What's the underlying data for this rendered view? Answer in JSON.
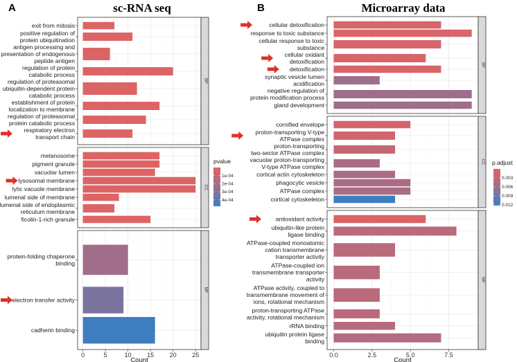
{
  "chart_data": [
    {
      "type": "bar",
      "orientation": "horizontal",
      "panel_letter": "A",
      "title": "sc-RNA seq",
      "xlabel": "Count",
      "xticks": [
        "0",
        "5",
        "10",
        "15",
        "20",
        "25"
      ],
      "xtick_values": [
        0,
        5,
        10,
        15,
        20,
        25
      ],
      "xlim": [
        -1.17,
        26.2
      ],
      "grid": true,
      "color_scale": {
        "name": "pvalue",
        "low_color": "#E06363",
        "mid_color": "#9B6F8E",
        "high_color": "#3A7FC2",
        "range": [
          0,
          0.00048
        ],
        "ticks": [
          "1e-04",
          "2e-04",
          "3e-04",
          "4e-04"
        ],
        "tick_values": [
          0.0001,
          0.0002,
          0.0003,
          0.0004
        ]
      },
      "legend_placement": "right",
      "facets": [
        {
          "strip": "BP",
          "bars": [
            {
              "label": "exit from mitosis",
              "count": 7,
              "color_value": 1e-05
            },
            {
              "label": "positive regulation of\nprotein ubiquitination",
              "count": 11,
              "color_value": 1e-05
            },
            {
              "label": "antigen processing and\npresentation of endogenous\npeptide antigen",
              "count": 6,
              "color_value": 1e-05
            },
            {
              "label": "regulation of protein\ncatabolic process",
              "count": 20,
              "color_value": 1e-05
            },
            {
              "label": "regulation of proteasomal\nubiquitin-dependent protein\ncatabolic process",
              "count": 12,
              "color_value": 1e-05
            },
            {
              "label": "establishment of protein\nlocalization to membrane",
              "count": 17,
              "color_value": 1e-05
            },
            {
              "label": "regulation of proteasomal\nprotein catabolic process",
              "count": 14,
              "color_value": 1e-05
            },
            {
              "label": "respiratory electron\ntransport chain",
              "count": 11,
              "color_value": 1e-05,
              "highlighted": true
            }
          ]
        },
        {
          "strip": "CC",
          "bars": [
            {
              "label": "melanosome",
              "count": 17,
              "color_value": 1e-05
            },
            {
              "label": "pigment granule",
              "count": 17,
              "color_value": 1e-05
            },
            {
              "label": "vacuolar lumen",
              "count": 16,
              "color_value": 1e-05
            },
            {
              "label": "lysosomal membrane",
              "count": 25,
              "color_value": 1e-05,
              "highlighted": true
            },
            {
              "label": "lytic vacuole membrane",
              "count": 25,
              "color_value": 1e-05
            },
            {
              "label": "lumenal side of membrane",
              "count": 8,
              "color_value": 1e-05
            },
            {
              "label": "lumenal side of endoplasmic\nreticulum membrane",
              "count": 7,
              "color_value": 1e-05
            },
            {
              "label": "ficolin-1-rich granule",
              "count": 15,
              "color_value": 1e-05
            }
          ]
        },
        {
          "strip": "MF",
          "bars": [
            {
              "label": "protein-folding chaperone\nbinding",
              "count": 10,
              "color_value": 0.00022
            },
            {
              "label": "electron transfer activity",
              "count": 9,
              "color_value": 0.00032,
              "highlighted": true
            },
            {
              "label": "cadherin binding",
              "count": 16,
              "color_value": 0.00047
            }
          ]
        }
      ]
    },
    {
      "type": "bar",
      "orientation": "horizontal",
      "panel_letter": "B",
      "title": "Microarray data",
      "xlabel": "Count",
      "xticks": [
        "0.0",
        "2.5",
        "5.0",
        "7.5"
      ],
      "xtick_values": [
        0,
        2.5,
        5,
        7.5
      ],
      "xlim": [
        -0.43,
        9.42
      ],
      "grid": true,
      "color_scale": {
        "name": "p.adjust",
        "low_color": "#E06363",
        "mid_color": "#9B6F8E",
        "high_color": "#3A7FC2",
        "range": [
          0,
          0.0123
        ],
        "ticks": [
          "0.003",
          "0.006",
          "0.009",
          "0.012"
        ],
        "tick_values": [
          0.003,
          0.006,
          0.009,
          0.012
        ]
      },
      "legend_placement": "right",
      "facets": [
        {
          "strip": "BP",
          "bars": [
            {
              "label": "cellular detoxification",
              "count": 7,
              "color_value": 0.0008,
              "highlighted": true
            },
            {
              "label": "response to toxic substance",
              "count": 9,
              "color_value": 0.0008
            },
            {
              "label": "cellular response to toxic\nsubstance",
              "count": 7,
              "color_value": 0.0008
            },
            {
              "label": "cellular oxidant\ndetoxification",
              "count": 6,
              "color_value": 0.0008,
              "highlighted": true
            },
            {
              "label": "detoxification",
              "count": 7,
              "color_value": 0.0008,
              "highlighted": true
            },
            {
              "label": "synaptic vesicle lumen\nacidification",
              "count": 3,
              "color_value": 0.0058
            },
            {
              "label": "negative regulation of\nprotein modification process",
              "count": 9,
              "color_value": 0.0058
            },
            {
              "label": "gland development",
              "count": 9,
              "color_value": 0.0058
            }
          ]
        },
        {
          "strip": "CC",
          "bars": [
            {
              "label": "cornified envelope",
              "count": 5,
              "color_value": 0.0012
            },
            {
              "label": "proton-transporting V-type\nATPase complex",
              "count": 4,
              "color_value": 0.0015,
              "highlighted": true
            },
            {
              "label": "proton-transporting\ntwo-sector ATPase complex",
              "count": 4,
              "color_value": 0.0025
            },
            {
              "label": "vacuolar proton-transporting\nV-type ATPase complex",
              "count": 3,
              "color_value": 0.0048
            },
            {
              "label": "cortical actin cytoskeleton",
              "count": 4,
              "color_value": 0.0048
            },
            {
              "label": "phagocytic vesicle",
              "count": 5,
              "color_value": 0.0048
            },
            {
              "label": "ATPase complex",
              "count": 5,
              "color_value": 0.0048
            },
            {
              "label": "cortical cytoskeleton",
              "count": 4,
              "color_value": 0.0121
            }
          ]
        },
        {
          "strip": "MF",
          "bars": [
            {
              "label": "antioxidant activity",
              "count": 6,
              "color_value": 0.0006,
              "highlighted": true
            },
            {
              "label": "ubiquitin-like protein\nligase binding",
              "count": 8,
              "color_value": 0.0035
            },
            {
              "label": "ATPase-coupled monoatomic\ncation transmembrane\ntransporter activity",
              "count": 4,
              "color_value": 0.0035
            },
            {
              "label": "ATPase-coupled ion\ntransmembrane transporter\nactivity",
              "count": 3,
              "color_value": 0.0035
            },
            {
              "label": "ATPase activity, coupled to\ntransmembrane movement of\nions, rotational mechanism",
              "count": 3,
              "color_value": 0.0035
            },
            {
              "label": "proton-transporting ATPase\nactivity, rotational mechanism",
              "count": 3,
              "color_value": 0.0035
            },
            {
              "label": "rRNA binding",
              "count": 4,
              "color_value": 0.0035
            },
            {
              "label": "ubiquitin protein ligase\nbinding",
              "count": 7,
              "color_value": 0.004
            }
          ]
        }
      ]
    }
  ]
}
